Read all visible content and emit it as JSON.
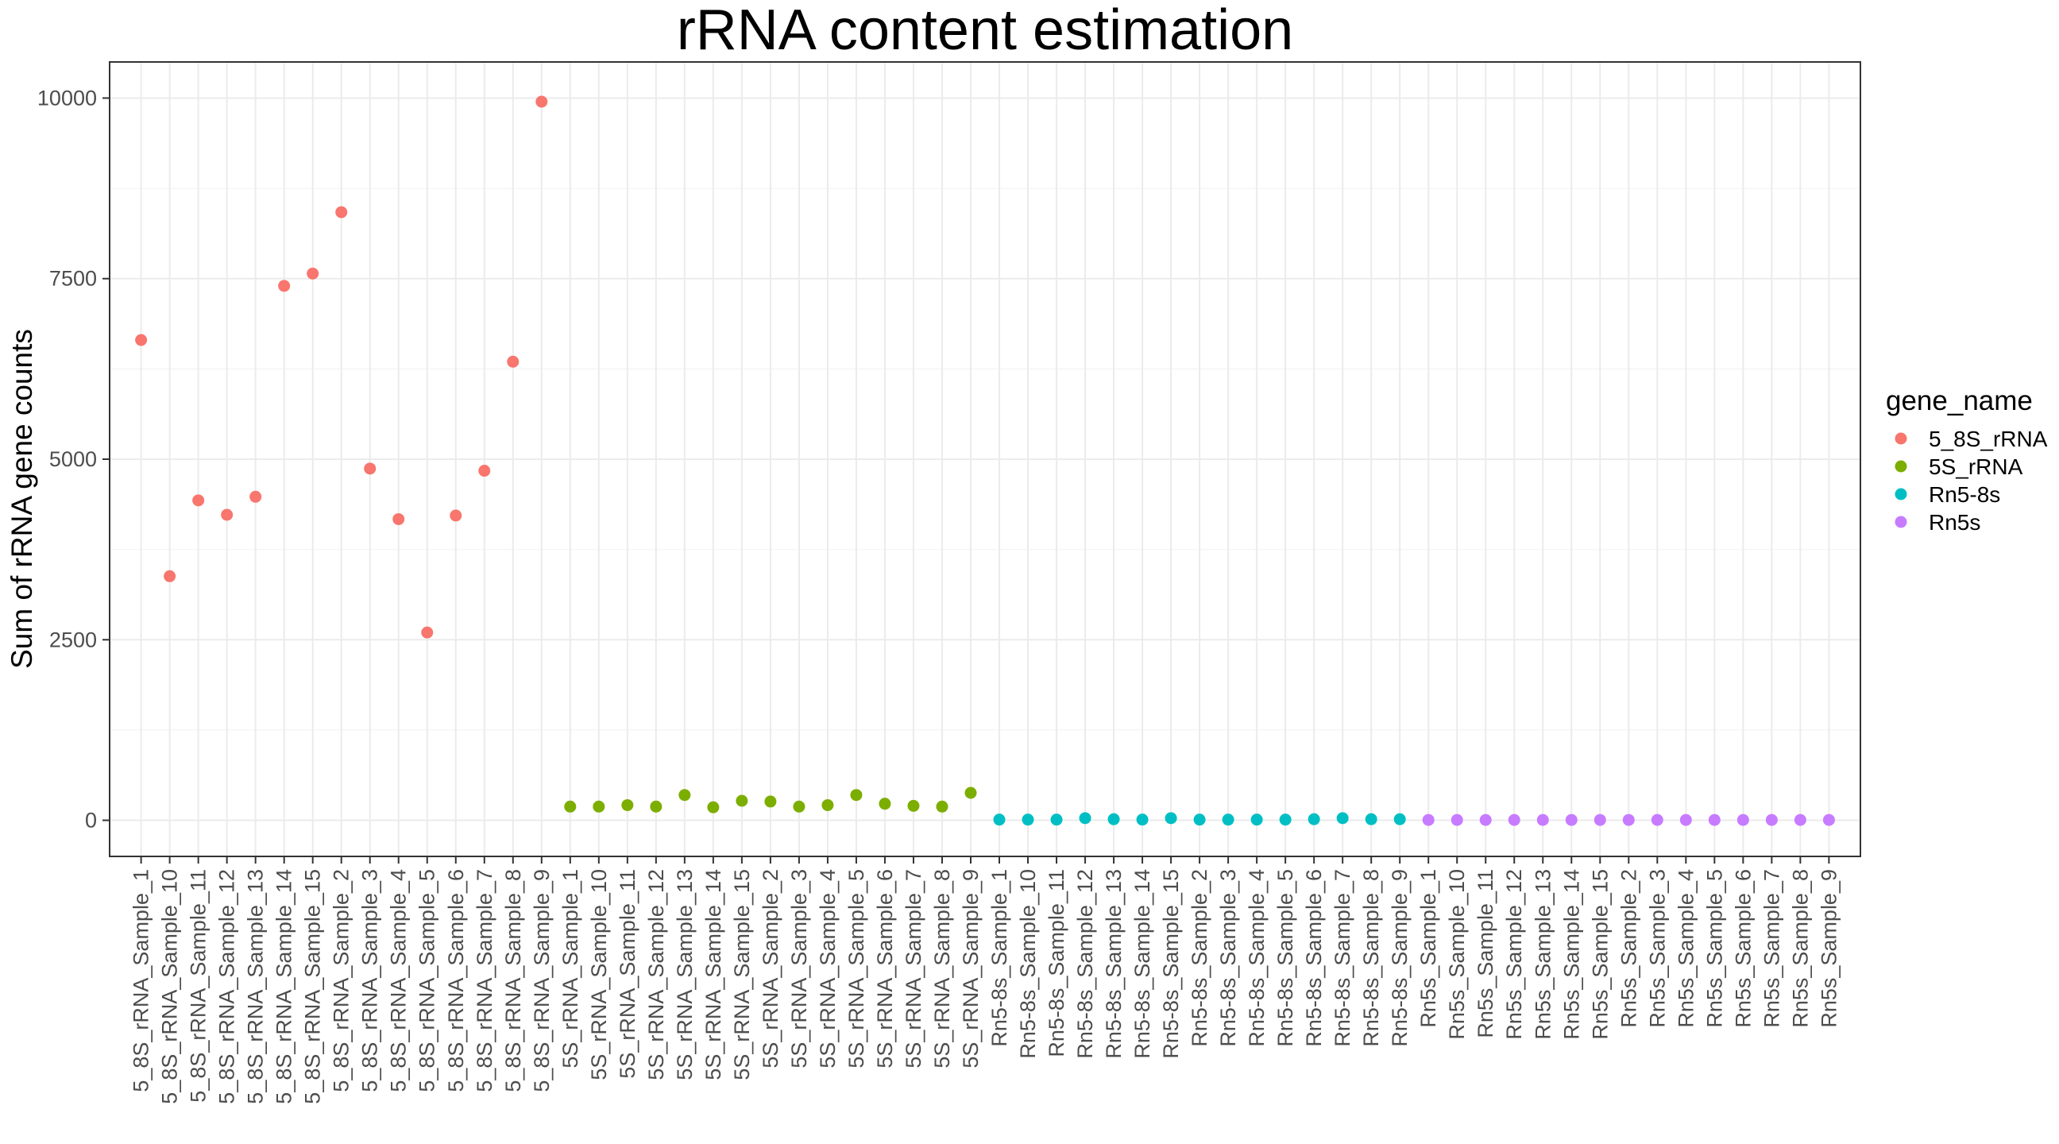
{
  "chart_data": {
    "type": "scatter",
    "title": "rRNA content estimation",
    "xlabel": "",
    "ylabel": "Sum of rRNA gene counts",
    "ylim": [
      -500,
      10500
    ],
    "yticks": [
      0,
      2500,
      5000,
      7500,
      10000
    ],
    "grid": true,
    "legend": {
      "title": "gene_name",
      "placement": "right",
      "entries": [
        {
          "name": "5_8S_rRNA",
          "color": "#F8766D"
        },
        {
          "name": "5S_rRNA",
          "color": "#7CAE00"
        },
        {
          "name": "Rn5-8s",
          "color": "#00BFC4"
        },
        {
          "name": "Rn5s",
          "color": "#C77CFF"
        }
      ]
    },
    "series": [
      {
        "name": "5_8S_rRNA",
        "color": "#F8766D",
        "x": [
          "5_8S_rRNA_Sample_1",
          "5_8S_rRNA_Sample_10",
          "5_8S_rRNA_Sample_11",
          "5_8S_rRNA_Sample_12",
          "5_8S_rRNA_Sample_13",
          "5_8S_rRNA_Sample_14",
          "5_8S_rRNA_Sample_15",
          "5_8S_rRNA_Sample_2",
          "5_8S_rRNA_Sample_3",
          "5_8S_rRNA_Sample_4",
          "5_8S_rRNA_Sample_5",
          "5_8S_rRNA_Sample_6",
          "5_8S_rRNA_Sample_7",
          "5_8S_rRNA_Sample_8",
          "5_8S_rRNA_Sample_9"
        ],
        "values": [
          6650,
          3380,
          4430,
          4230,
          4480,
          7400,
          7570,
          8420,
          4870,
          4170,
          2600,
          4220,
          4840,
          6350,
          9950
        ]
      },
      {
        "name": "5S_rRNA",
        "color": "#7CAE00",
        "x": [
          "5S_rRNA_Sample_1",
          "5S_rRNA_Sample_10",
          "5S_rRNA_Sample_11",
          "5S_rRNA_Sample_12",
          "5S_rRNA_Sample_13",
          "5S_rRNA_Sample_14",
          "5S_rRNA_Sample_15",
          "5S_rRNA_Sample_2",
          "5S_rRNA_Sample_3",
          "5S_rRNA_Sample_4",
          "5S_rRNA_Sample_5",
          "5S_rRNA_Sample_6",
          "5S_rRNA_Sample_7",
          "5S_rRNA_Sample_8",
          "5S_rRNA_Sample_9"
        ],
        "values": [
          190,
          190,
          210,
          190,
          350,
          180,
          270,
          260,
          190,
          210,
          350,
          230,
          200,
          190,
          380
        ]
      },
      {
        "name": "Rn5-8s",
        "color": "#00BFC4",
        "x": [
          "Rn5-8s_Sample_1",
          "Rn5-8s_Sample_10",
          "Rn5-8s_Sample_11",
          "Rn5-8s_Sample_12",
          "Rn5-8s_Sample_13",
          "Rn5-8s_Sample_14",
          "Rn5-8s_Sample_15",
          "Rn5-8s_Sample_2",
          "Rn5-8s_Sample_3",
          "Rn5-8s_Sample_4",
          "Rn5-8s_Sample_5",
          "Rn5-8s_Sample_6",
          "Rn5-8s_Sample_7",
          "Rn5-8s_Sample_8",
          "Rn5-8s_Sample_9"
        ],
        "values": [
          10,
          10,
          10,
          30,
          15,
          10,
          30,
          10,
          10,
          10,
          10,
          15,
          30,
          15,
          15
        ]
      },
      {
        "name": "Rn5s",
        "color": "#C77CFF",
        "x": [
          "Rn5s_Sample_1",
          "Rn5s_Sample_10",
          "Rn5s_Sample_11",
          "Rn5s_Sample_12",
          "Rn5s_Sample_13",
          "Rn5s_Sample_14",
          "Rn5s_Sample_15",
          "Rn5s_Sample_2",
          "Rn5s_Sample_3",
          "Rn5s_Sample_4",
          "Rn5s_Sample_5",
          "Rn5s_Sample_6",
          "Rn5s_Sample_7",
          "Rn5s_Sample_8",
          "Rn5s_Sample_9"
        ],
        "values": [
          5,
          5,
          5,
          5,
          5,
          5,
          5,
          5,
          5,
          5,
          5,
          5,
          5,
          5,
          5
        ]
      }
    ]
  }
}
